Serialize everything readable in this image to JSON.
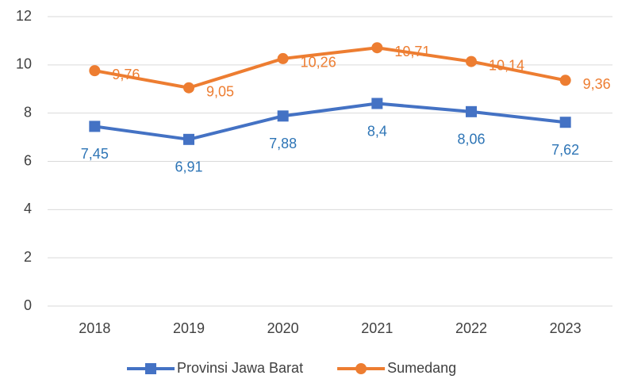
{
  "chart_data": {
    "type": "line",
    "categories": [
      "2018",
      "2019",
      "2020",
      "2021",
      "2022",
      "2023"
    ],
    "series": [
      {
        "name": "Provinsi Jawa Barat",
        "color": "#4472c4",
        "marker": "square",
        "label_color": "#2e75b6",
        "label_position": "below",
        "values": [
          7.45,
          6.91,
          7.88,
          8.4,
          8.06,
          7.62
        ],
        "value_labels": [
          "7,45",
          "6,91",
          "7,88",
          "8,4",
          "8,06",
          "7,62"
        ]
      },
      {
        "name": "Sumedang",
        "color": "#ed7d31",
        "marker": "circle",
        "label_color": "#ed7d31",
        "label_position": "right",
        "values": [
          9.76,
          9.05,
          10.26,
          10.71,
          10.14,
          9.36
        ],
        "value_labels": [
          "9,76",
          "9,05",
          "10,26",
          "10,71",
          "10,14",
          "9,36"
        ]
      }
    ],
    "ylim": [
      0,
      12
    ],
    "yticks": [
      0,
      2,
      4,
      6,
      8,
      10,
      12
    ],
    "grid": true,
    "legend": "bottom"
  }
}
